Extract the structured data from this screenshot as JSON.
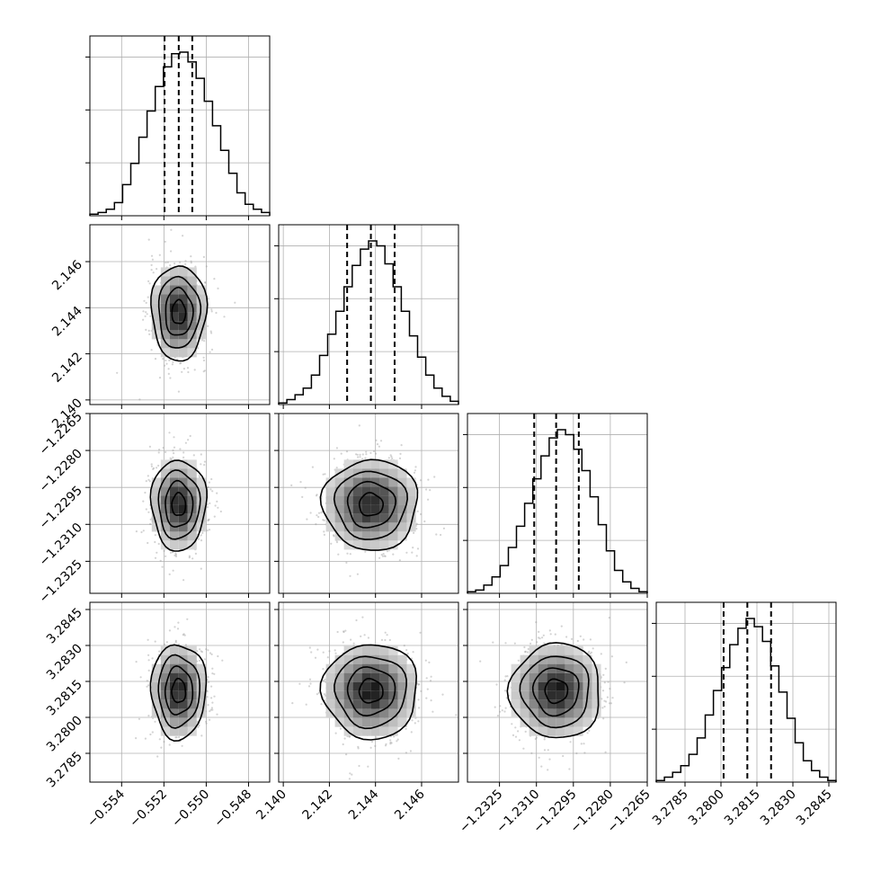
{
  "chart_data": {
    "type": "corner",
    "grid": true,
    "colors": {
      "line": "#000000",
      "grid": "#b0b0b0",
      "points": "#9e9e9e"
    },
    "parameters": [
      {
        "center": -0.5513,
        "sigma": 0.00065,
        "range": [
          -0.5555,
          -0.547
        ],
        "ticks": [
          "−0.554",
          "−0.552",
          "−0.550",
          "−0.548"
        ],
        "tick_values": [
          -0.554,
          -0.552,
          -0.55,
          -0.548
        ],
        "quantiles": [
          -0.55197,
          -0.5513,
          -0.55066
        ]
      },
      {
        "center": 2.1438,
        "sigma": 0.00103,
        "range": [
          2.1398,
          2.1476
        ],
        "ticks": [
          "2.140",
          "2.142",
          "2.144",
          "2.146"
        ],
        "tick_values": [
          2.14,
          2.142,
          2.144,
          2.146
        ],
        "quantiles": [
          2.14277,
          2.1438,
          2.14483
        ]
      },
      {
        "center": -1.2302,
        "sigma": 0.00092,
        "range": [
          -1.2338,
          -1.2265
        ],
        "ticks": [
          "−1.2325",
          "−1.2310",
          "−1.2295",
          "−1.2280",
          "−1.2265"
        ],
        "tick_values": [
          -1.2325,
          -1.231,
          -1.2295,
          -1.228,
          -1.2265
        ],
        "quantiles": [
          -1.23109,
          -1.2302,
          -1.22928
        ]
      },
      {
        "center": 3.2811,
        "sigma": 0.00099,
        "range": [
          3.2773,
          3.2848
        ],
        "ticks": [
          "3.2785",
          "3.2800",
          "3.2815",
          "3.2830",
          "3.2845"
        ],
        "tick_values": [
          3.2785,
          3.28,
          3.2815,
          3.283,
          3.2845
        ],
        "quantiles": [
          3.28011,
          3.2811,
          3.28209
        ]
      }
    ],
    "histograms": [
      [
        0.01,
        0.02,
        0.04,
        0.08,
        0.19,
        0.32,
        0.48,
        0.64,
        0.79,
        0.91,
        0.99,
        1.0,
        0.94,
        0.84,
        0.7,
        0.55,
        0.4,
        0.26,
        0.14,
        0.07,
        0.04,
        0.02
      ],
      [
        0.01,
        0.03,
        0.06,
        0.1,
        0.18,
        0.3,
        0.43,
        0.57,
        0.72,
        0.85,
        0.95,
        1.0,
        0.97,
        0.86,
        0.72,
        0.57,
        0.42,
        0.29,
        0.18,
        0.1,
        0.05,
        0.02
      ],
      [
        0.01,
        0.02,
        0.05,
        0.1,
        0.17,
        0.28,
        0.41,
        0.55,
        0.7,
        0.84,
        0.95,
        1.0,
        0.97,
        0.88,
        0.75,
        0.59,
        0.42,
        0.26,
        0.14,
        0.07,
        0.03,
        0.01
      ],
      [
        0.01,
        0.03,
        0.06,
        0.1,
        0.17,
        0.27,
        0.41,
        0.56,
        0.7,
        0.84,
        0.94,
        1.0,
        0.95,
        0.86,
        0.71,
        0.55,
        0.39,
        0.24,
        0.13,
        0.07,
        0.03,
        0.01
      ]
    ],
    "contour_levels_sigma": [
      0.5,
      1.0,
      1.5,
      2.0
    ]
  }
}
